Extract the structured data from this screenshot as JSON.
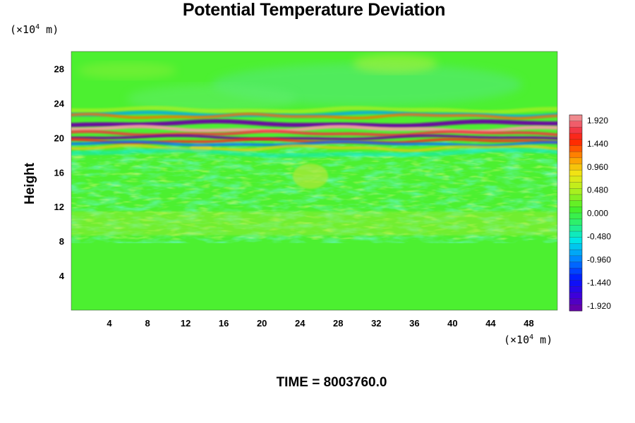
{
  "chart_data": {
    "type": "heatmap",
    "title": "Potential Temperature Deviation",
    "ylabel": "Height",
    "y_unit": {
      "prefix": "(×10",
      "exp": "4",
      "suffix": " m)"
    },
    "x_unit": {
      "prefix": "(×10",
      "exp": "4",
      "suffix": " m)"
    },
    "xlim": [
      0,
      51
    ],
    "ylim": [
      0,
      30
    ],
    "x_ticks": [
      "4",
      "8",
      "12",
      "16",
      "20",
      "24",
      "28",
      "32",
      "36",
      "40",
      "44",
      "48"
    ],
    "x_tick_values": [
      4,
      8,
      12,
      16,
      20,
      24,
      28,
      32,
      36,
      40,
      44,
      48
    ],
    "y_ticks": [
      "4",
      "8",
      "12",
      "16",
      "20",
      "24",
      "28"
    ],
    "y_tick_values": [
      4,
      8,
      12,
      16,
      20,
      24,
      28
    ],
    "colorbar": {
      "range": [
        -1.92,
        1.92
      ],
      "labels": [
        "1.920",
        "1.440",
        "0.960",
        "0.480",
        "0.000",
        "-0.480",
        "-0.960",
        "-1.440",
        "-1.920"
      ],
      "label_values": [
        1.92,
        1.44,
        0.96,
        0.48,
        0.0,
        -0.48,
        -0.96,
        -1.44,
        -1.92
      ],
      "colormap": "rainbow (purple-blue-cyan-green-yellow-red-pink)"
    },
    "description_bands": [
      {
        "height_range": [
          19.5,
          22.5
        ],
        "value_range": [
          -1.92,
          1.92
        ],
        "feature": "strong alternating positive/negative layers"
      },
      {
        "height_range": [
          9,
          19
        ],
        "value_range": [
          -0.5,
          0.5
        ],
        "feature": "weak mottled perturbations"
      },
      {
        "height_range": [
          0,
          9
        ],
        "value_range": [
          -0.1,
          0.1
        ],
        "feature": "near zero"
      },
      {
        "height_range": [
          22.5,
          30
        ],
        "value_range": [
          -0.6,
          0.3
        ],
        "feature": "weak smooth waves"
      }
    ]
  },
  "footer": {
    "label": "TIME = ",
    "value": "8003760.0"
  },
  "colors": {
    "background": "#ffffff",
    "field_base": "#4cf030"
  }
}
